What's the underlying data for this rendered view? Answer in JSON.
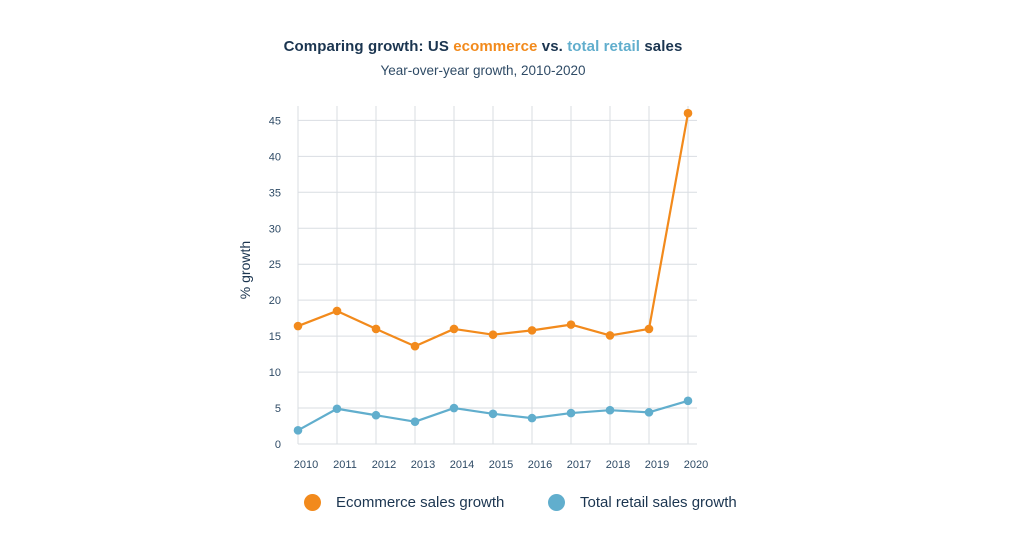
{
  "chart_data": {
    "type": "line",
    "title_parts": {
      "pre": "Comparing growth: US ",
      "series1": "ecommerce",
      "mid": " vs. ",
      "series2": "total retail",
      "post": " sales"
    },
    "subtitle": "Year-over-year growth, 2010-2020",
    "xlabel": "",
    "ylabel": "% growth",
    "categories": [
      "2010",
      "2011",
      "2012",
      "2013",
      "2014",
      "2015",
      "2016",
      "2017",
      "2018",
      "2019",
      "2020"
    ],
    "ylim": [
      0,
      47
    ],
    "yticks": [
      0,
      5,
      10,
      15,
      20,
      25,
      30,
      35,
      40,
      45
    ],
    "grid": true,
    "legend_position": "bottom",
    "series": [
      {
        "name": "Ecommerce sales growth",
        "color": "#f28a1c",
        "values": [
          16.4,
          18.5,
          16.0,
          13.6,
          16.0,
          15.2,
          15.8,
          16.6,
          15.1,
          16.0,
          46.0
        ]
      },
      {
        "name": "Total retail sales growth",
        "color": "#61aecd",
        "values": [
          1.9,
          4.9,
          4.0,
          3.1,
          5.0,
          4.2,
          3.6,
          4.3,
          4.7,
          4.4,
          6.0
        ]
      }
    ]
  }
}
